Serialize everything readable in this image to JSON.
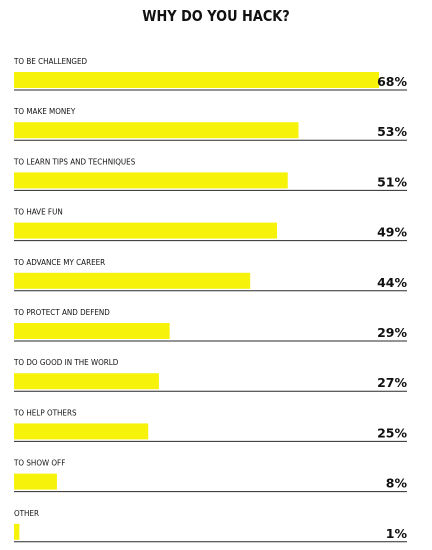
{
  "chart_data": {
    "type": "bar",
    "orientation": "horizontal",
    "title": "WHY DO YOU HACK?",
    "categories": [
      "TO BE CHALLENGED",
      "TO MAKE MONEY",
      "TO LEARN TIPS AND TECHNIQUES",
      "TO HAVE FUN",
      "TO ADVANCE MY CAREER",
      "TO PROTECT AND DEFEND",
      "TO DO GOOD IN THE WORLD",
      "TO HELP OTHERS",
      "TO SHOW OFF",
      "OTHER"
    ],
    "values": [
      68,
      53,
      51,
      49,
      44,
      29,
      27,
      25,
      8,
      1
    ],
    "value_labels": [
      "68%",
      "53%",
      "51%",
      "49%",
      "44%",
      "29%",
      "27%",
      "25%",
      "8%",
      "1%"
    ],
    "xlim": [
      0,
      68
    ],
    "bar_color": "#F7F20A",
    "grid": false,
    "legend": "none"
  }
}
